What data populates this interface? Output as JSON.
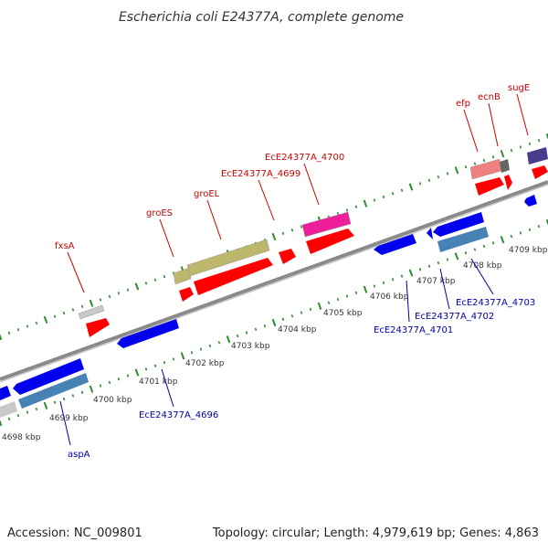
{
  "title": "Escherichia coli E24377A, complete genome",
  "footer": {
    "accession": "Accession: NC_009801",
    "summary": "Topology: circular; Length: 4,979,619 bp; Genes: 4,863"
  },
  "colors": {
    "backbone": "#8a8a8a",
    "tick": "#2e8b2e",
    "label_top": "#cc0000",
    "label_bottom": "#0000aa"
  },
  "ticks": [
    "4698 kbp",
    "4699 kbp",
    "4700 kbp",
    "4701 kbp",
    "4702 kbp",
    "4703 kbp",
    "4704 kbp",
    "4705 kbp",
    "4706 kbp",
    "4707 kbp",
    "4708 kbp",
    "4709 kbp"
  ],
  "labels_top": [
    "fxsA",
    "groES",
    "groEL",
    "EcE24377A_4699",
    "EcE24377A_4700",
    "efp",
    "ecnB",
    "sugE"
  ],
  "labels_bottom": [
    "aspA",
    "EcE24377A_4696",
    "EcE24377A_4701",
    "EcE24377A_4702",
    "EcE24377A_4703"
  ],
  "features": [
    {
      "kind": "gene",
      "color": "#ff0000"
    },
    {
      "kind": "gene",
      "color": "#0000ee"
    },
    {
      "kind": "cds",
      "color": "#c8c8c8"
    },
    {
      "kind": "cds",
      "color": "#bdb76b"
    },
    {
      "kind": "cds",
      "color": "#ee1e9b"
    },
    {
      "kind": "cds",
      "color": "#f08080"
    },
    {
      "kind": "cds",
      "color": "#4682b4"
    },
    {
      "kind": "cds",
      "color": "#483d8b"
    },
    {
      "kind": "cds",
      "color": "#666666"
    }
  ]
}
